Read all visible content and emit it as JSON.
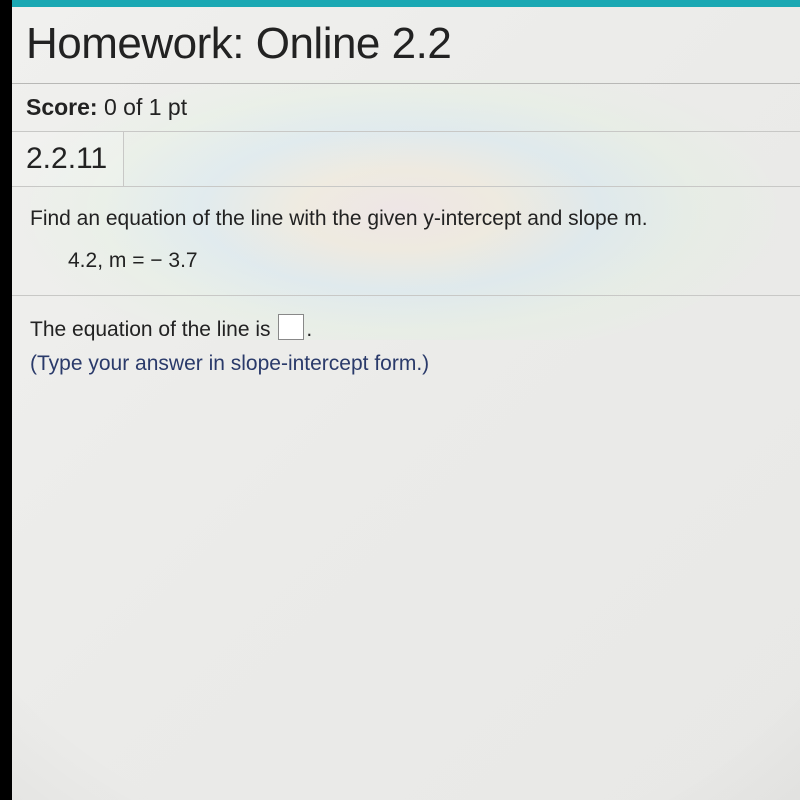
{
  "colors": {
    "accent_bar": "#1aa8b3",
    "border": "#c8c8c6",
    "text": "#222222",
    "hint_text": "#2a3a6a",
    "left_edge": "#000000",
    "background": "#ebebe9",
    "input_border": "#888888",
    "input_bg": "#ffffff"
  },
  "typography": {
    "title_fontsize": 44,
    "score_fontsize": 23,
    "qnum_fontsize": 30,
    "body_fontsize": 21,
    "font_family": "Arial"
  },
  "header": {
    "title": "Homework: Online 2.2"
  },
  "score": {
    "label": "Score:",
    "value": " 0 of 1 pt"
  },
  "question": {
    "number": "2.2.11",
    "prompt": "Find an equation of the line with the given y-intercept and slope m.",
    "given": "4.2, m = − 3.7",
    "answer_prefix": "The equation of the line is ",
    "answer_suffix": ".",
    "hint": "(Type your answer in slope-intercept form.)"
  }
}
